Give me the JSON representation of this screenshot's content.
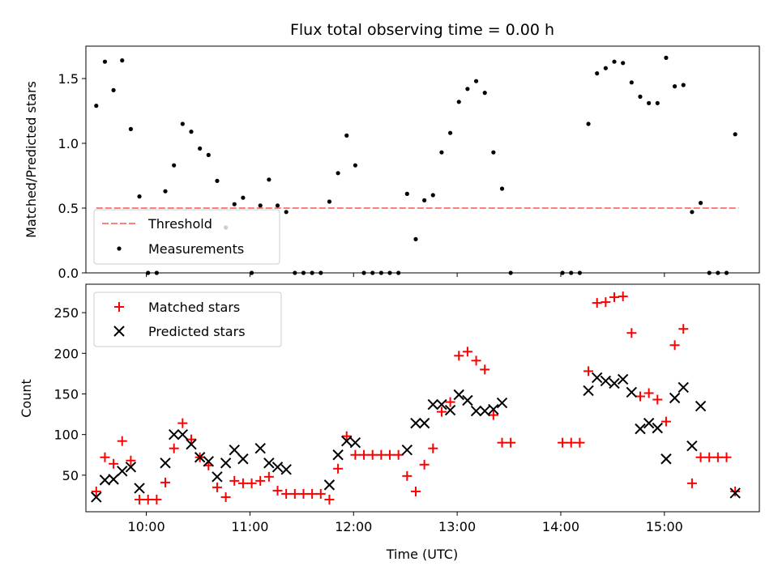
{
  "chart_data": [
    {
      "type": "scatter",
      "title": "Flux total observing time = 0.00 h",
      "ylabel": "Matched/Predicted stars",
      "xlabel": "",
      "ylim": [
        0,
        1.75
      ],
      "yticks": [
        0.0,
        0.5,
        1.0,
        1.5
      ],
      "xlim": [
        "09:25",
        "15:55"
      ],
      "xticks": [
        "10:00",
        "11:00",
        "12:00",
        "13:00",
        "14:00",
        "15:00"
      ],
      "x_tick_labels_shown": false,
      "legend_position": "lower-left",
      "series": [
        {
          "name": "Threshold",
          "kind": "dashed-line",
          "color": "#ff7f7f",
          "x": [
            "09:31",
            "15:43"
          ],
          "values": [
            0.5,
            0.5
          ]
        },
        {
          "name": "Measurements",
          "kind": "dot",
          "color": "#000000",
          "x": [
            "09:31",
            "09:36",
            "09:41",
            "09:46",
            "09:51",
            "09:56",
            "10:01",
            "10:06",
            "10:11",
            "10:16",
            "10:21",
            "10:26",
            "10:31",
            "10:36",
            "10:41",
            "10:46",
            "10:51",
            "10:56",
            "11:01",
            "11:06",
            "11:11",
            "11:16",
            "11:21",
            "11:26",
            "11:31",
            "11:36",
            "11:41",
            "11:46",
            "11:51",
            "11:56",
            "12:01",
            "12:06",
            "12:11",
            "12:16",
            "12:21",
            "12:26",
            "12:31",
            "12:36",
            "12:41",
            "12:46",
            "12:51",
            "12:56",
            "13:01",
            "13:06",
            "13:11",
            "13:16",
            "13:21",
            "13:26",
            "13:31",
            "14:01",
            "14:06",
            "14:11",
            "14:16",
            "14:21",
            "14:26",
            "14:31",
            "14:36",
            "14:41",
            "14:46",
            "14:51",
            "14:56",
            "15:01",
            "15:06",
            "15:11",
            "15:16",
            "15:21",
            "15:26",
            "15:31",
            "15:36",
            "15:41"
          ],
          "values": [
            1.29,
            1.63,
            1.41,
            1.64,
            1.11,
            0.59,
            0.0,
            0.0,
            0.63,
            0.83,
            1.15,
            1.09,
            0.96,
            0.91,
            0.71,
            0.35,
            0.53,
            0.58,
            0.0,
            0.52,
            0.72,
            0.52,
            0.47,
            0.0,
            0.0,
            0.0,
            0.0,
            0.55,
            0.77,
            1.06,
            0.83,
            0.0,
            0.0,
            0.0,
            0.0,
            0.0,
            0.61,
            0.26,
            0.56,
            0.6,
            0.93,
            1.08,
            1.32,
            1.42,
            1.48,
            1.39,
            0.93,
            0.65,
            0.0,
            0.0,
            0.0,
            0.0,
            1.15,
            1.54,
            1.58,
            1.63,
            1.62,
            1.47,
            1.36,
            1.31,
            1.31,
            1.66,
            1.44,
            1.45,
            0.47,
            0.54,
            0.0,
            0.0,
            0.0,
            1.07
          ]
        }
      ]
    },
    {
      "type": "scatter",
      "title": "",
      "ylabel": "Count",
      "xlabel": "Time (UTC)",
      "ylim": [
        5,
        285
      ],
      "yticks": [
        50,
        100,
        150,
        200,
        250
      ],
      "xlim": [
        "09:25",
        "15:55"
      ],
      "xticks": [
        "10:00",
        "11:00",
        "12:00",
        "13:00",
        "14:00",
        "15:00"
      ],
      "x_tick_labels_shown": true,
      "legend_position": "upper-left",
      "series": [
        {
          "name": "Matched stars",
          "kind": "plus",
          "color": "#ff0000",
          "x": [
            "09:31",
            "09:36",
            "09:41",
            "09:46",
            "09:51",
            "09:56",
            "10:01",
            "10:06",
            "10:11",
            "10:16",
            "10:21",
            "10:26",
            "10:31",
            "10:36",
            "10:41",
            "10:46",
            "10:51",
            "10:56",
            "11:01",
            "11:06",
            "11:11",
            "11:16",
            "11:21",
            "11:26",
            "11:31",
            "11:36",
            "11:41",
            "11:46",
            "11:51",
            "11:56",
            "12:01",
            "12:06",
            "12:11",
            "12:16",
            "12:21",
            "12:26",
            "12:31",
            "12:36",
            "12:41",
            "12:46",
            "12:51",
            "12:56",
            "13:01",
            "13:06",
            "13:11",
            "13:16",
            "13:21",
            "13:26",
            "13:31",
            "14:01",
            "14:06",
            "14:11",
            "14:16",
            "14:21",
            "14:26",
            "14:31",
            "14:36",
            "14:41",
            "14:46",
            "14:51",
            "14:56",
            "15:01",
            "15:06",
            "15:11",
            "15:16",
            "15:21",
            "15:26",
            "15:31",
            "15:36",
            "15:41"
          ],
          "values": [
            30,
            72,
            64,
            92,
            68,
            20,
            20,
            20,
            41,
            83,
            114,
            94,
            72,
            62,
            35,
            23,
            43,
            40,
            40,
            43,
            48,
            31,
            27,
            27,
            27,
            27,
            27,
            20,
            58,
            98,
            75,
            75,
            75,
            75,
            75,
            75,
            49,
            30,
            63,
            83,
            128,
            140,
            197,
            202,
            191,
            180,
            124,
            90,
            90,
            90,
            90,
            90,
            178,
            262,
            263,
            269,
            270,
            225,
            147,
            151,
            143,
            116,
            210,
            230,
            40,
            72,
            72,
            72,
            72,
            30
          ]
        },
        {
          "name": "Predicted stars",
          "kind": "cross",
          "color": "#000000",
          "x": [
            "09:31",
            "09:36",
            "09:41",
            "09:46",
            "09:51",
            "09:56",
            "10:11",
            "10:16",
            "10:21",
            "10:26",
            "10:31",
            "10:36",
            "10:41",
            "10:46",
            "10:51",
            "10:56",
            "11:06",
            "11:11",
            "11:16",
            "11:21",
            "11:46",
            "11:51",
            "11:56",
            "12:01",
            "12:31",
            "12:36",
            "12:41",
            "12:46",
            "12:51",
            "12:56",
            "13:01",
            "13:06",
            "13:11",
            "13:16",
            "13:21",
            "13:26",
            "14:16",
            "14:21",
            "14:26",
            "14:31",
            "14:36",
            "14:41",
            "14:46",
            "14:51",
            "14:56",
            "15:01",
            "15:06",
            "15:11",
            "15:16",
            "15:21",
            "15:41"
          ],
          "values": [
            23,
            44,
            45,
            55,
            60,
            34,
            65,
            100,
            100,
            88,
            72,
            67,
            48,
            65,
            81,
            70,
            83,
            65,
            60,
            57,
            38,
            75,
            92,
            90,
            81,
            114,
            114,
            137,
            137,
            130,
            149,
            142,
            129,
            129,
            131,
            139,
            154,
            170,
            166,
            163,
            168,
            152,
            107,
            114,
            108,
            70,
            145,
            158,
            86,
            135,
            28
          ]
        }
      ]
    }
  ]
}
